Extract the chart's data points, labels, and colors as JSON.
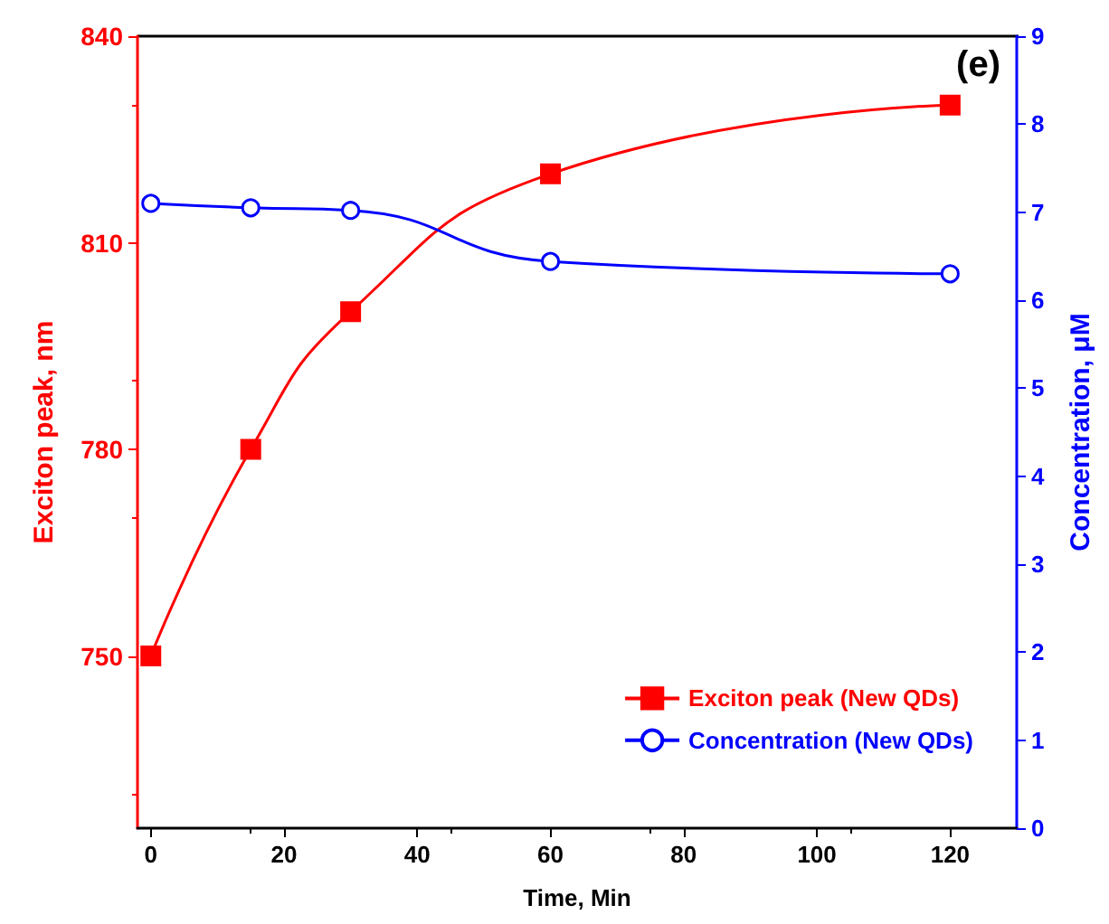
{
  "chart_data": {
    "type": "line",
    "xlabel": "Time, Min",
    "ylabel": "Exciton peak, nm",
    "y2label": "Concentration, μM",
    "annotations": [
      "(e)"
    ],
    "xlim": [
      -2,
      130
    ],
    "xticks": [
      0,
      20,
      40,
      60,
      80,
      100,
      120
    ],
    "ylim": [
      725,
      840
    ],
    "yticks": [
      750,
      780,
      810,
      840
    ],
    "y2lim": [
      0,
      9
    ],
    "y2ticks": [
      0,
      1,
      2,
      3,
      4,
      5,
      6,
      7,
      8,
      9
    ],
    "grid": false,
    "legend": "bottom right",
    "line_style": "solid",
    "series": [
      {
        "name": "Exciton peak (New QDs)",
        "color": "#ff0000",
        "marker": "square",
        "x": [
          0,
          15,
          30,
          60,
          120
        ],
        "values": [
          750,
          780,
          800,
          820,
          830
        ]
      },
      {
        "name": "Concentration (New QDs)",
        "color": "#0000ff",
        "marker": "circle",
        "axis": "y2",
        "x": [
          0,
          15,
          30,
          60,
          120
        ],
        "values": [
          7.1,
          7.05,
          7.02,
          6.44,
          6.3
        ]
      }
    ]
  }
}
